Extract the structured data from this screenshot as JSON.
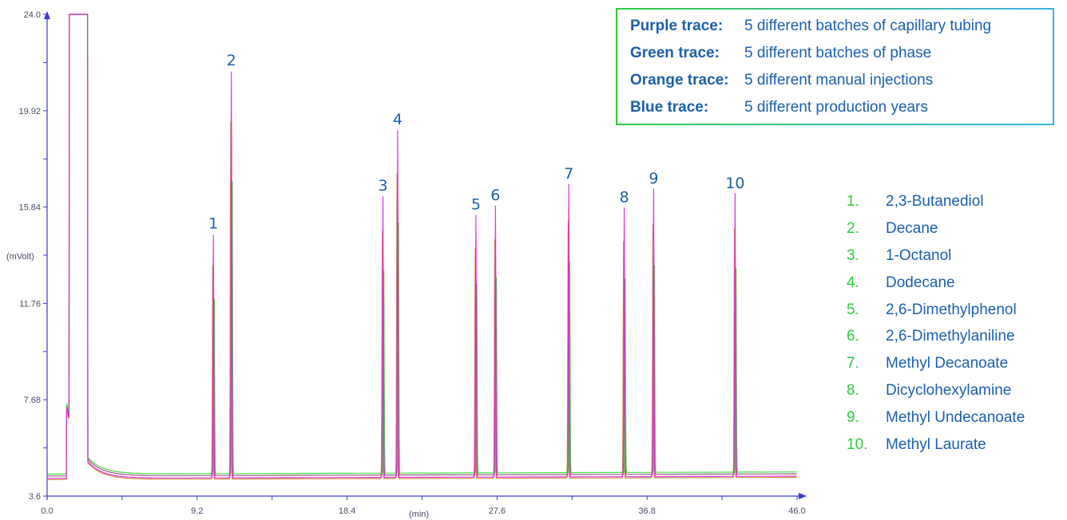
{
  "chart_data": {
    "type": "line",
    "xlim": [
      0.0,
      46.0
    ],
    "ylim": [
      3.6,
      24.0
    ],
    "x_ticks": [
      "0.0",
      "9.2",
      "18.4",
      "27.6",
      "36.8",
      "46.0"
    ],
    "y_ticks": [
      "3.6",
      "7.68",
      "11.76",
      "15.84",
      "19.92",
      "24.0"
    ],
    "xlabel": "(min)",
    "ylabel": "(mVolt)",
    "series": [
      {
        "name": "Purple trace",
        "color": "#e020e0"
      },
      {
        "name": "Green trace",
        "color": "#33dd33"
      },
      {
        "name": "Orange trace",
        "color": "#c8882a"
      },
      {
        "name": "Blue trace",
        "color": "#8a4a7a"
      }
    ],
    "peaks": [
      {
        "label": "1",
        "x": 10.2,
        "y": 14.6
      },
      {
        "label": "2",
        "x": 11.3,
        "y": 21.5
      },
      {
        "label": "3",
        "x": 20.6,
        "y": 16.2
      },
      {
        "label": "4",
        "x": 21.5,
        "y": 19.0
      },
      {
        "label": "5",
        "x": 26.3,
        "y": 15.4
      },
      {
        "label": "6",
        "x": 27.5,
        "y": 15.8
      },
      {
        "label": "7",
        "x": 32.0,
        "y": 16.7
      },
      {
        "label": "8",
        "x": 35.4,
        "y": 15.7
      },
      {
        "label": "9",
        "x": 37.2,
        "y": 16.5
      },
      {
        "label": "10",
        "x": 42.2,
        "y": 16.3
      }
    ]
  },
  "legend": [
    {
      "key": "Purple trace:",
      "text": "5 different batches of capillary tubing"
    },
    {
      "key": "Green trace:",
      "text": "5 different batches of phase"
    },
    {
      "key": "Orange trace:",
      "text": "5 different manual injections"
    },
    {
      "key": "Blue trace:",
      "text": "5 different production years"
    }
  ],
  "compounds": [
    {
      "num": "1.",
      "name": "2,3-Butanediol"
    },
    {
      "num": "2.",
      "name": "Decane"
    },
    {
      "num": "3.",
      "name": "1-Octanol"
    },
    {
      "num": "4.",
      "name": "Dodecane"
    },
    {
      "num": "5.",
      "name": "2,6-Dimethylphenol"
    },
    {
      "num": "6.",
      "name": "2,6-Dimethylaniline"
    },
    {
      "num": "7.",
      "name": "Methyl Decanoate"
    },
    {
      "num": "8.",
      "name": "Dicyclohexylamine"
    },
    {
      "num": "9.",
      "name": "Methyl Undecanoate"
    },
    {
      "num": "10.",
      "name": "Methyl Laurate"
    }
  ]
}
